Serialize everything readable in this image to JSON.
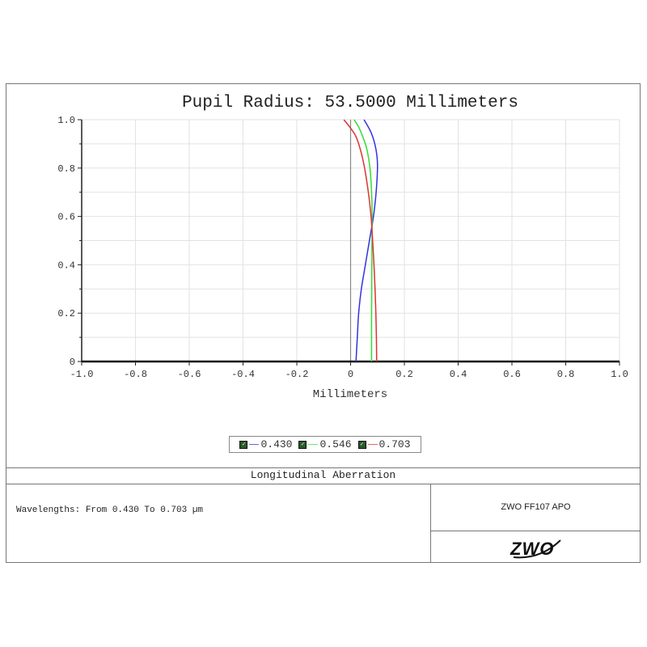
{
  "chart_data": {
    "type": "line",
    "title": "Pupil Radius: 53.5000 Millimeters",
    "xlabel": "Millimeters",
    "ylabel": "",
    "xlim": [
      -1.0,
      1.0
    ],
    "ylim": [
      0,
      1.0
    ],
    "x_ticks": [
      "-1.0",
      "-0.8",
      "-0.6",
      "-0.4",
      "-0.2",
      "0",
      "0.2",
      "0.4",
      "0.6",
      "0.8",
      "1.0"
    ],
    "y_ticks": [
      "0",
      "0.2",
      "0.4",
      "0.6",
      "0.8",
      "1.0"
    ],
    "grid": true,
    "legend_position": "bottom",
    "series": [
      {
        "name": "0.430",
        "color": "#3333dd",
        "points": [
          [
            0.02,
            0
          ],
          [
            0.025,
            0.1
          ],
          [
            0.03,
            0.2
          ],
          [
            0.04,
            0.3
          ],
          [
            0.055,
            0.4
          ],
          [
            0.07,
            0.5
          ],
          [
            0.085,
            0.6
          ],
          [
            0.095,
            0.7
          ],
          [
            0.1,
            0.8
          ],
          [
            0.098,
            0.85
          ],
          [
            0.09,
            0.9
          ],
          [
            0.075,
            0.95
          ],
          [
            0.05,
            1.0
          ]
        ]
      },
      {
        "name": "0.546",
        "color": "#33dd33",
        "points": [
          [
            0.078,
            0
          ],
          [
            0.078,
            0.2
          ],
          [
            0.079,
            0.4
          ],
          [
            0.08,
            0.6
          ],
          [
            0.078,
            0.7
          ],
          [
            0.072,
            0.8
          ],
          [
            0.06,
            0.88
          ],
          [
            0.045,
            0.93
          ],
          [
            0.03,
            0.97
          ],
          [
            0.013,
            1.0
          ]
        ]
      },
      {
        "name": "0.703",
        "color": "#dd3333",
        "points": [
          [
            0.097,
            0
          ],
          [
            0.096,
            0.1
          ],
          [
            0.094,
            0.2
          ],
          [
            0.091,
            0.3
          ],
          [
            0.087,
            0.4
          ],
          [
            0.082,
            0.5
          ],
          [
            0.076,
            0.6
          ],
          [
            0.066,
            0.7
          ],
          [
            0.052,
            0.8
          ],
          [
            0.038,
            0.87
          ],
          [
            0.02,
            0.93
          ],
          [
            0.0,
            0.965
          ],
          [
            -0.025,
            1.0
          ]
        ]
      }
    ]
  },
  "legend": {
    "items": [
      {
        "label": "0.430",
        "color": "#6666ee"
      },
      {
        "label": "0.546",
        "color": "#66ee66"
      },
      {
        "label": "0.703",
        "color": "#ee6666"
      }
    ]
  },
  "footer": {
    "plot_type": "Longitudinal Aberration",
    "wavelengths": "Wavelengths: From 0.430 To 0.703 µm",
    "lens_name": "ZWO FF107 APO",
    "logo_text": "ZWO"
  }
}
